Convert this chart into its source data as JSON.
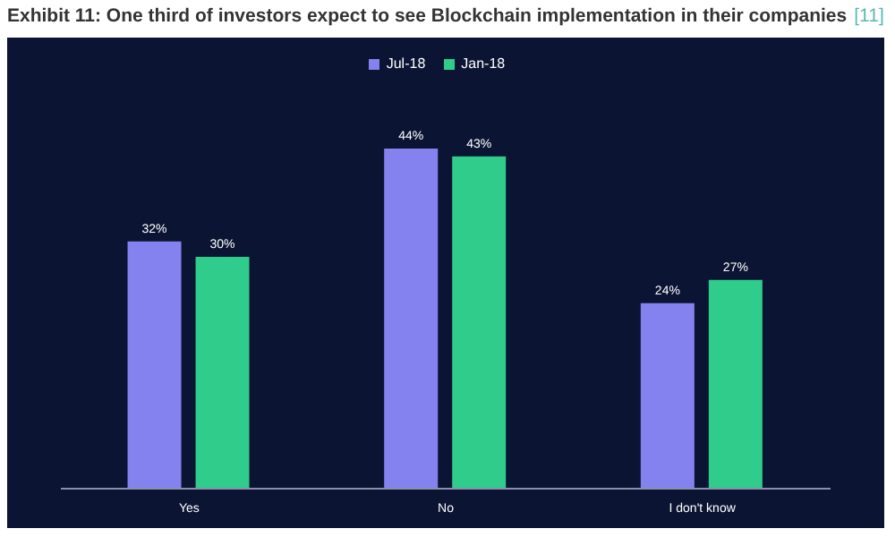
{
  "chart_data": {
    "type": "bar",
    "title": "Exhibit 11: One third of investors expect to see Blockchain implementation in their companies",
    "annotations": [
      "[11]"
    ],
    "categories": [
      "Yes",
      "No",
      "I don't know"
    ],
    "series": [
      {
        "name": "Jul-18",
        "color": "#8482ee",
        "values": [
          32,
          44,
          24
        ],
        "value_labels": [
          "32%",
          "44%",
          "24%"
        ]
      },
      {
        "name": "Jan-18",
        "color": "#2fcc8b",
        "values": [
          30,
          43,
          27
        ],
        "value_labels": [
          "30%",
          "43%",
          "27%"
        ]
      }
    ],
    "legend": "top",
    "grid": false
  }
}
